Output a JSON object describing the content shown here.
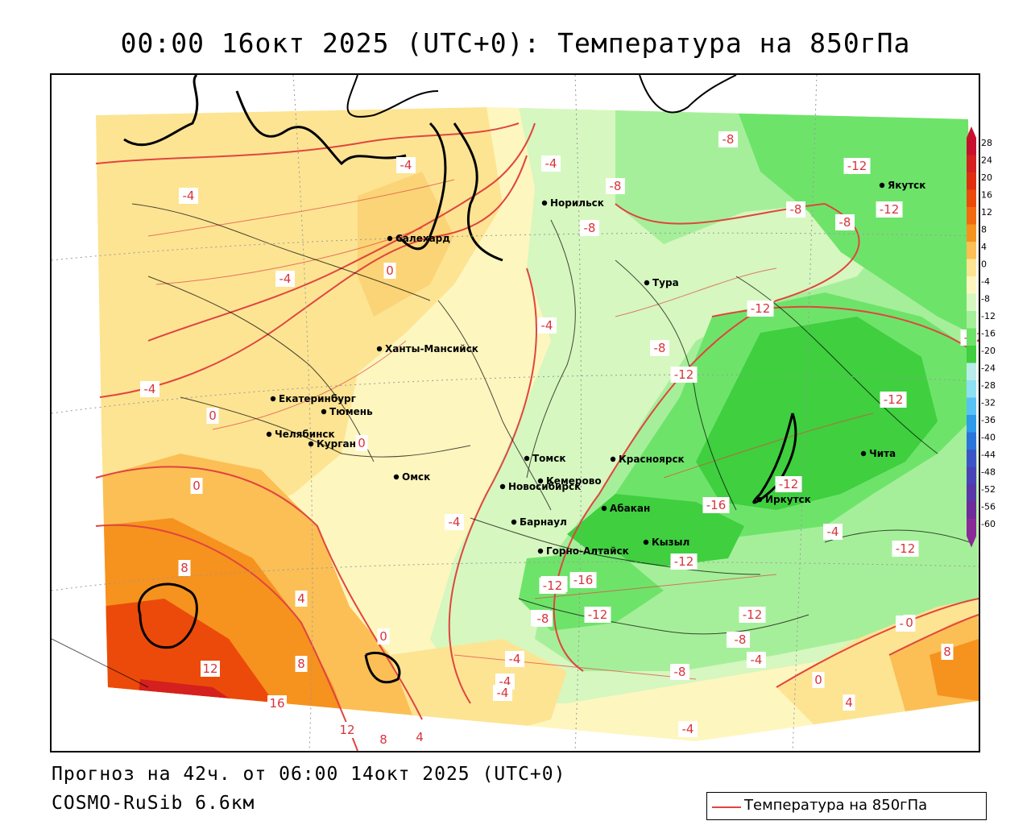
{
  "title": "00:00 16окт 2025 (UTC+0): Температура на 850гПа",
  "forecast_line": "Прогноз на 42ч. от 06:00 14окт 2025 (UTC+0)",
  "model_name": "COSMO-RuSib 6.6км",
  "legend_series": {
    "name": "Температура на 850гПа",
    "color": "#e0453f"
  },
  "colorbar": {
    "ticks": [
      "28",
      "24",
      "20",
      "16",
      "12",
      "8",
      "4",
      "0",
      "-4",
      "-8",
      "-12",
      "-16",
      "-20",
      "-24",
      "-28",
      "-32",
      "-36",
      "-40",
      "-44",
      "-48",
      "-52",
      "-56",
      "-60"
    ],
    "colors": [
      "#c8102e",
      "#d4201e",
      "#e02d10",
      "#ec4a0a",
      "#f26a10",
      "#f6921e",
      "#fbbf55",
      "#fde493",
      "#fef6bf",
      "#d6f7bf",
      "#a6ef9a",
      "#6ee36a",
      "#3fcf3f",
      "#b7ece9",
      "#8ee0f3",
      "#57c2f3",
      "#2d9bea",
      "#2b74dc",
      "#3b55c9",
      "#4a43b8",
      "#5b36a8",
      "#6f2b9a",
      "#8a2a98"
    ]
  },
  "cities": [
    {
      "name": "Салехард"
    },
    {
      "name": "Норильск"
    },
    {
      "name": "Якутск"
    },
    {
      "name": "Тура"
    },
    {
      "name": "Ханты-Мансийск"
    },
    {
      "name": "Екатеринбург"
    },
    {
      "name": "Тюмень"
    },
    {
      "name": "Челябинск"
    },
    {
      "name": "Курган"
    },
    {
      "name": "Омск"
    },
    {
      "name": "Новосибирск"
    },
    {
      "name": "Томск"
    },
    {
      "name": "Кемерово"
    },
    {
      "name": "Красноярск"
    },
    {
      "name": "Барнаул"
    },
    {
      "name": "Абакан"
    },
    {
      "name": "Горно-Алтайск"
    },
    {
      "name": "Кызыл"
    },
    {
      "name": "Иркутск"
    },
    {
      "name": "Чита"
    }
  ],
  "contour_labels": [
    "-4",
    "-4",
    "-4",
    "0",
    "-4",
    "-8",
    "-8",
    "-8",
    "-12",
    "-8",
    "-8",
    "-12",
    "-12",
    "-4",
    "-8",
    "-12",
    "-12",
    "-12",
    "-12",
    "-4",
    "0",
    "0",
    "0",
    "-4",
    "-4",
    "-16",
    "-12",
    "-8",
    "-8",
    "-12",
    "-16",
    "-12",
    "-12",
    "-8",
    "-12",
    "-12",
    "-8",
    "-4",
    "-8",
    "-4",
    "8",
    "4",
    "0",
    "12",
    "8",
    "16",
    "12",
    "8",
    "4",
    "-4",
    "-4",
    "-4",
    "0",
    "-4",
    "0",
    "4",
    "8"
  ]
}
